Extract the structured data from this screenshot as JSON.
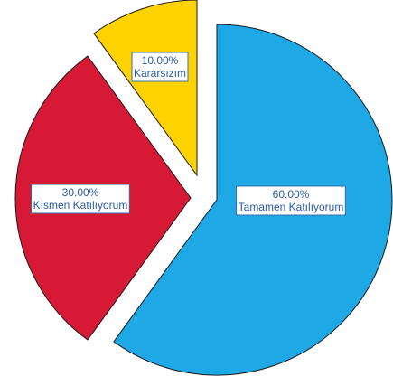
{
  "chart_data": {
    "type": "pie",
    "slices": [
      {
        "label": "Tamamen Katılıyorum",
        "value": 60.0,
        "value_text": "60.00%",
        "color": "#1ea8e6"
      },
      {
        "label": "Kısmen Katılıyorum",
        "value": 30.0,
        "value_text": "30.00%",
        "color": "#d71935"
      },
      {
        "label": "Kararsızım",
        "value": 10.0,
        "value_text": "10.00%",
        "color": "#ffd200"
      }
    ],
    "exploded": true,
    "start_angle": "12 o'clock",
    "direction": "clockwise",
    "label_style": "boxed"
  }
}
